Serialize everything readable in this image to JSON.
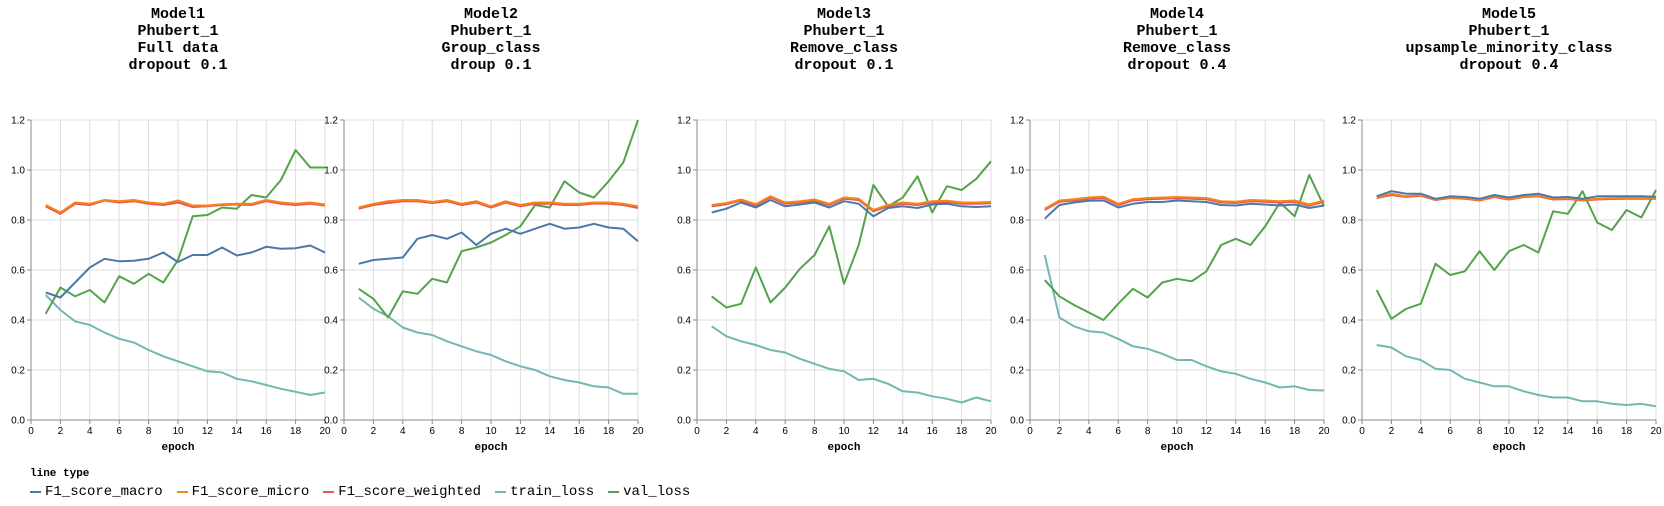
{
  "legend": {
    "title": "line type",
    "items": [
      {
        "label": "F1_score_macro",
        "color": "#4c78a8"
      },
      {
        "label": "F1_score_micro",
        "color": "#f58518"
      },
      {
        "label": "F1_score_weighted",
        "color": "#e45756"
      },
      {
        "label": "train_loss",
        "color": "#72b7b2"
      },
      {
        "label": "val_loss",
        "color": "#54a24b"
      }
    ]
  },
  "chart_data": [
    {
      "type": "line",
      "title": [
        "Model1",
        "Phubert_1",
        "Full data",
        "dropout 0.1"
      ],
      "xlabel": "epoch",
      "ylabel": "",
      "xlim": [
        0,
        20
      ],
      "ylim": [
        0,
        1.2
      ],
      "xticks": [
        0,
        2,
        4,
        6,
        8,
        10,
        12,
        14,
        16,
        18,
        20
      ],
      "yticks": [
        "0.0",
        "0.2",
        "0.4",
        "0.6",
        "0.8",
        "1.0",
        "1.2"
      ],
      "grid": true,
      "x": [
        1,
        2,
        3,
        4,
        5,
        6,
        7,
        8,
        9,
        10,
        11,
        12,
        13,
        14,
        15,
        16,
        17,
        18,
        19,
        20
      ],
      "series": [
        {
          "name": "F1_score_macro",
          "values": [
            0.51,
            0.49,
            0.55,
            0.61,
            0.645,
            0.635,
            0.637,
            0.645,
            0.67,
            0.632,
            0.66,
            0.66,
            0.69,
            0.658,
            0.67,
            0.693,
            0.685,
            0.687,
            0.698,
            0.67
          ]
        },
        {
          "name": "F1_score_micro",
          "values": [
            0.86,
            0.83,
            0.87,
            0.865,
            0.88,
            0.875,
            0.88,
            0.87,
            0.865,
            0.878,
            0.858,
            0.858,
            0.863,
            0.865,
            0.865,
            0.88,
            0.87,
            0.865,
            0.87,
            0.862
          ]
        },
        {
          "name": "F1_score_weighted",
          "values": [
            0.855,
            0.825,
            0.865,
            0.86,
            0.878,
            0.87,
            0.875,
            0.865,
            0.86,
            0.87,
            0.852,
            0.855,
            0.86,
            0.862,
            0.86,
            0.875,
            0.865,
            0.86,
            0.865,
            0.858
          ]
        },
        {
          "name": "train_loss",
          "values": [
            0.5,
            0.44,
            0.395,
            0.38,
            0.35,
            0.325,
            0.31,
            0.28,
            0.255,
            0.235,
            0.215,
            0.195,
            0.19,
            0.165,
            0.155,
            0.14,
            0.125,
            0.113,
            0.1,
            0.11
          ]
        },
        {
          "name": "val_loss",
          "values": [
            0.425,
            0.53,
            0.495,
            0.52,
            0.47,
            0.575,
            0.545,
            0.585,
            0.55,
            0.64,
            0.815,
            0.82,
            0.85,
            0.845,
            0.9,
            0.89,
            0.96,
            1.08,
            1.01,
            1.01
          ]
        }
      ]
    },
    {
      "type": "line",
      "title": [
        "Model2",
        "Phubert_1",
        "Group_class",
        "droup 0.1"
      ],
      "xlabel": "epoch",
      "ylabel": "",
      "xlim": [
        0,
        20
      ],
      "ylim": [
        0,
        1.2
      ],
      "xticks": [
        0,
        2,
        4,
        6,
        8,
        10,
        12,
        14,
        16,
        18,
        20
      ],
      "yticks": [
        "0.0",
        "0.2",
        "0.4",
        "0.6",
        "0.8",
        "1.0",
        "1.2"
      ],
      "grid": true,
      "x": [
        1,
        2,
        3,
        4,
        5,
        6,
        7,
        8,
        9,
        10,
        11,
        12,
        13,
        14,
        15,
        16,
        17,
        18,
        19,
        20
      ],
      "series": [
        {
          "name": "F1_score_macro",
          "values": [
            0.625,
            0.64,
            0.645,
            0.65,
            0.725,
            0.74,
            0.725,
            0.75,
            0.7,
            0.745,
            0.765,
            0.745,
            0.765,
            0.785,
            0.765,
            0.77,
            0.785,
            0.77,
            0.765,
            0.715
          ]
        },
        {
          "name": "F1_score_micro",
          "values": [
            0.85,
            0.865,
            0.875,
            0.88,
            0.88,
            0.872,
            0.88,
            0.865,
            0.875,
            0.855,
            0.875,
            0.86,
            0.87,
            0.87,
            0.865,
            0.865,
            0.87,
            0.87,
            0.865,
            0.855
          ]
        },
        {
          "name": "F1_score_weighted",
          "values": [
            0.845,
            0.86,
            0.868,
            0.875,
            0.875,
            0.868,
            0.875,
            0.86,
            0.87,
            0.85,
            0.87,
            0.855,
            0.865,
            0.865,
            0.86,
            0.86,
            0.866,
            0.865,
            0.86,
            0.848
          ]
        },
        {
          "name": "train_loss",
          "values": [
            0.49,
            0.445,
            0.415,
            0.37,
            0.35,
            0.34,
            0.315,
            0.295,
            0.275,
            0.26,
            0.235,
            0.215,
            0.2,
            0.175,
            0.16,
            0.15,
            0.135,
            0.13,
            0.105,
            0.105
          ]
        },
        {
          "name": "val_loss",
          "values": [
            0.525,
            0.485,
            0.41,
            0.515,
            0.505,
            0.565,
            0.55,
            0.675,
            0.69,
            0.71,
            0.74,
            0.775,
            0.86,
            0.85,
            0.955,
            0.91,
            0.89,
            0.955,
            1.03,
            1.2
          ]
        }
      ]
    },
    {
      "type": "line",
      "title": [
        "Model3",
        "Phubert_1",
        "Remove_class",
        "dropout 0.1"
      ],
      "xlabel": "epoch",
      "ylabel": "",
      "xlim": [
        0,
        20
      ],
      "ylim": [
        0,
        1.2
      ],
      "xticks": [
        0,
        2,
        4,
        6,
        8,
        10,
        12,
        14,
        16,
        18,
        20
      ],
      "yticks": [
        "0.0",
        "0.2",
        "0.4",
        "0.6",
        "0.8",
        "1.0",
        "1.2"
      ],
      "grid": true,
      "x": [
        1,
        2,
        3,
        4,
        5,
        6,
        7,
        8,
        9,
        10,
        11,
        12,
        13,
        14,
        15,
        16,
        17,
        18,
        19,
        20
      ],
      "series": [
        {
          "name": "F1_score_macro",
          "values": [
            0.83,
            0.845,
            0.87,
            0.85,
            0.88,
            0.855,
            0.862,
            0.87,
            0.85,
            0.875,
            0.865,
            0.815,
            0.848,
            0.855,
            0.848,
            0.862,
            0.865,
            0.855,
            0.852,
            0.855
          ]
        },
        {
          "name": "F1_score_micro",
          "values": [
            0.86,
            0.868,
            0.882,
            0.863,
            0.895,
            0.87,
            0.875,
            0.882,
            0.865,
            0.89,
            0.885,
            0.84,
            0.86,
            0.87,
            0.865,
            0.875,
            0.877,
            0.87,
            0.87,
            0.872
          ]
        },
        {
          "name": "F1_score_weighted",
          "values": [
            0.855,
            0.863,
            0.878,
            0.858,
            0.89,
            0.865,
            0.87,
            0.877,
            0.86,
            0.885,
            0.88,
            0.835,
            0.855,
            0.865,
            0.86,
            0.87,
            0.872,
            0.865,
            0.865,
            0.867
          ]
        },
        {
          "name": "train_loss",
          "values": [
            0.375,
            0.335,
            0.315,
            0.3,
            0.28,
            0.27,
            0.245,
            0.225,
            0.205,
            0.195,
            0.16,
            0.165,
            0.145,
            0.115,
            0.11,
            0.095,
            0.085,
            0.07,
            0.09,
            0.075
          ]
        },
        {
          "name": "val_loss",
          "values": [
            0.495,
            0.45,
            0.465,
            0.61,
            0.47,
            0.53,
            0.605,
            0.66,
            0.775,
            0.545,
            0.7,
            0.94,
            0.855,
            0.89,
            0.975,
            0.83,
            0.935,
            0.92,
            0.965,
            1.035
          ]
        }
      ]
    },
    {
      "type": "line",
      "title": [
        "Model4",
        "Phubert_1",
        "Remove_class",
        "dropout 0.4"
      ],
      "xlabel": "epoch",
      "ylabel": "",
      "xlim": [
        0,
        20
      ],
      "ylim": [
        0,
        1.2
      ],
      "xticks": [
        0,
        2,
        4,
        6,
        8,
        10,
        12,
        14,
        16,
        18,
        20
      ],
      "yticks": [
        "0.0",
        "0.2",
        "0.4",
        "0.6",
        "0.8",
        "1.0",
        "1.2"
      ],
      "grid": true,
      "x": [
        1,
        2,
        3,
        4,
        5,
        6,
        7,
        8,
        9,
        10,
        11,
        12,
        13,
        14,
        15,
        16,
        17,
        18,
        19,
        20
      ],
      "series": [
        {
          "name": "F1_score_macro",
          "values": [
            0.805,
            0.86,
            0.87,
            0.877,
            0.878,
            0.85,
            0.865,
            0.872,
            0.872,
            0.878,
            0.875,
            0.872,
            0.86,
            0.858,
            0.865,
            0.862,
            0.858,
            0.862,
            0.848,
            0.858
          ]
        },
        {
          "name": "F1_score_micro",
          "values": [
            0.845,
            0.878,
            0.883,
            0.89,
            0.893,
            0.865,
            0.883,
            0.888,
            0.89,
            0.892,
            0.89,
            0.888,
            0.875,
            0.873,
            0.88,
            0.878,
            0.875,
            0.878,
            0.862,
            0.878
          ]
        },
        {
          "name": "F1_score_weighted",
          "values": [
            0.84,
            0.873,
            0.878,
            0.885,
            0.888,
            0.86,
            0.878,
            0.883,
            0.885,
            0.887,
            0.885,
            0.883,
            0.87,
            0.868,
            0.875,
            0.873,
            0.87,
            0.873,
            0.857,
            0.873
          ]
        },
        {
          "name": "train_loss",
          "values": [
            0.66,
            0.41,
            0.375,
            0.355,
            0.35,
            0.325,
            0.295,
            0.285,
            0.265,
            0.24,
            0.24,
            0.215,
            0.195,
            0.185,
            0.165,
            0.15,
            0.13,
            0.135,
            0.12,
            0.118
          ]
        },
        {
          "name": "val_loss",
          "values": [
            0.56,
            0.495,
            0.46,
            0.43,
            0.4,
            0.465,
            0.525,
            0.49,
            0.55,
            0.565,
            0.555,
            0.595,
            0.7,
            0.725,
            0.7,
            0.775,
            0.87,
            0.815,
            0.98,
            0.855
          ]
        }
      ]
    },
    {
      "type": "line",
      "title": [
        "Model5",
        "Phubert_1",
        "upsample_minority_class",
        "dropout 0.4"
      ],
      "xlabel": "epoch",
      "ylabel": "",
      "xlim": [
        0,
        20
      ],
      "ylim": [
        0,
        1.2
      ],
      "xticks": [
        0,
        2,
        4,
        6,
        8,
        10,
        12,
        14,
        16,
        18,
        20
      ],
      "yticks": [
        "0.0",
        "0.2",
        "0.4",
        "0.6",
        "0.8",
        "1.0",
        "1.2"
      ],
      "grid": true,
      "x": [
        1,
        2,
        3,
        4,
        5,
        6,
        7,
        8,
        9,
        10,
        11,
        12,
        13,
        14,
        15,
        16,
        17,
        18,
        19,
        20
      ],
      "series": [
        {
          "name": "F1_score_macro",
          "values": [
            0.895,
            0.915,
            0.905,
            0.905,
            0.885,
            0.895,
            0.892,
            0.885,
            0.9,
            0.89,
            0.9,
            0.905,
            0.89,
            0.892,
            0.885,
            0.895,
            0.895,
            0.895,
            0.895,
            0.893
          ]
        },
        {
          "name": "F1_score_micro",
          "values": [
            0.89,
            0.905,
            0.895,
            0.9,
            0.882,
            0.89,
            0.888,
            0.88,
            0.895,
            0.885,
            0.895,
            0.898,
            0.885,
            0.887,
            0.88,
            0.885,
            0.887,
            0.888,
            0.888,
            0.888
          ]
        },
        {
          "name": "F1_score_weighted",
          "values": [
            0.888,
            0.9,
            0.892,
            0.897,
            0.88,
            0.888,
            0.885,
            0.878,
            0.892,
            0.882,
            0.892,
            0.895,
            0.882,
            0.884,
            0.878,
            0.882,
            0.884,
            0.885,
            0.885,
            0.885
          ]
        },
        {
          "name": "train_loss",
          "values": [
            0.3,
            0.29,
            0.255,
            0.24,
            0.205,
            0.2,
            0.165,
            0.15,
            0.135,
            0.135,
            0.115,
            0.1,
            0.09,
            0.09,
            0.075,
            0.075,
            0.065,
            0.06,
            0.065,
            0.055
          ]
        },
        {
          "name": "val_loss",
          "values": [
            0.52,
            0.405,
            0.445,
            0.465,
            0.625,
            0.58,
            0.595,
            0.675,
            0.6,
            0.675,
            0.7,
            0.67,
            0.835,
            0.825,
            0.915,
            0.79,
            0.76,
            0.84,
            0.81,
            0.92
          ]
        }
      ]
    }
  ]
}
